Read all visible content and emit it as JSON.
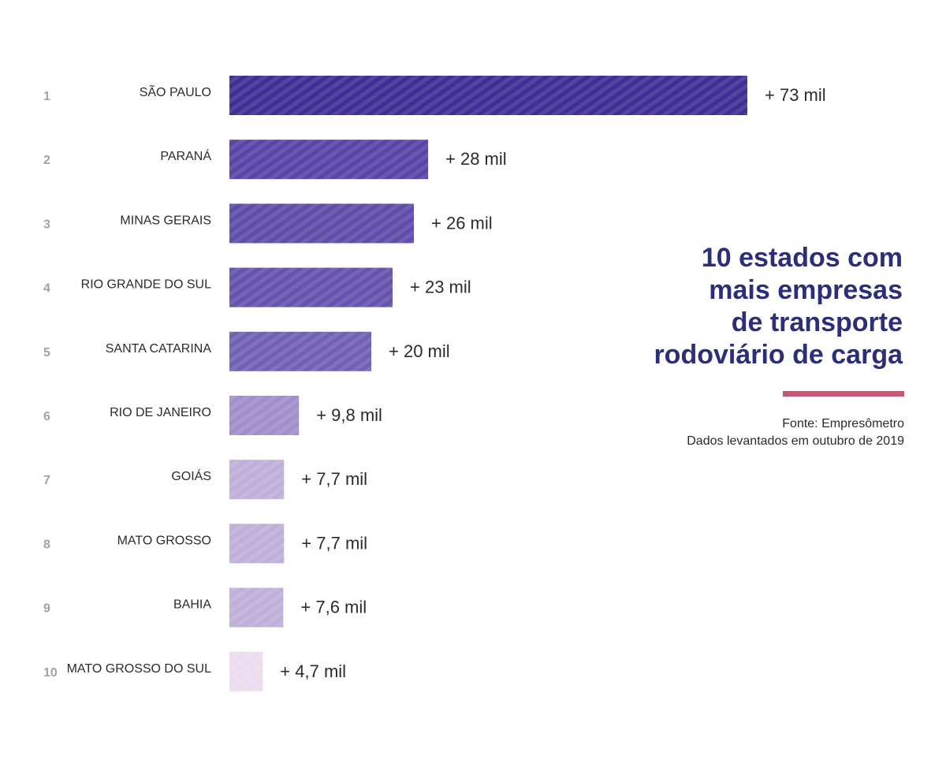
{
  "title_lines": [
    "10 estados com",
    "mais empresas",
    "de transporte",
    "rodoviário de carga"
  ],
  "source_lines": [
    "Fonte: Empresômetro",
    "Dados levantados em outubro de 2019"
  ],
  "colors": {
    "title": "#2b2f7a",
    "accent_rule": "#c05a75",
    "rank_text": "#a3a3a3",
    "label_text": "#2b2b2b",
    "bar_darkest": "#3f2f94",
    "bar_lightest": "#ecdcef"
  },
  "chart_data": {
    "type": "bar",
    "orientation": "horizontal",
    "ranks": [
      "1",
      "2",
      "3",
      "4",
      "5",
      "6",
      "7",
      "8",
      "9",
      "10"
    ],
    "categories": [
      "SÃO PAULO",
      "PARANÁ",
      "MINAS GERAIS",
      "RIO GRANDE DO SUL",
      "SANTA CATARINA",
      "RIO DE JANEIRO",
      "GOIÁS",
      "MATO GROSSO",
      "BAHIA",
      "MATO GROSSO DO SUL"
    ],
    "values": [
      73,
      28,
      26,
      23,
      20,
      9.8,
      7.7,
      7.7,
      7.6,
      4.7
    ],
    "value_labels": [
      "+ 73 mil",
      "+ 28 mil",
      "+ 26 mil",
      "+ 23 mil",
      "+ 20 mil",
      "+ 9,8 mil",
      "+ 7,7 mil",
      "+ 7,7 mil",
      "+ 7,6 mil",
      "+ 4,7 mil"
    ],
    "bar_colors": [
      "#3f2f94",
      "#5845a6",
      "#5f4daa",
      "#6553ad",
      "#7161b4",
      "#a08fca",
      "#bfafd9",
      "#bfafd9",
      "#bfafd9",
      "#ecdcef"
    ],
    "xlim": [
      0,
      73
    ],
    "grid": false,
    "legend": "none"
  }
}
